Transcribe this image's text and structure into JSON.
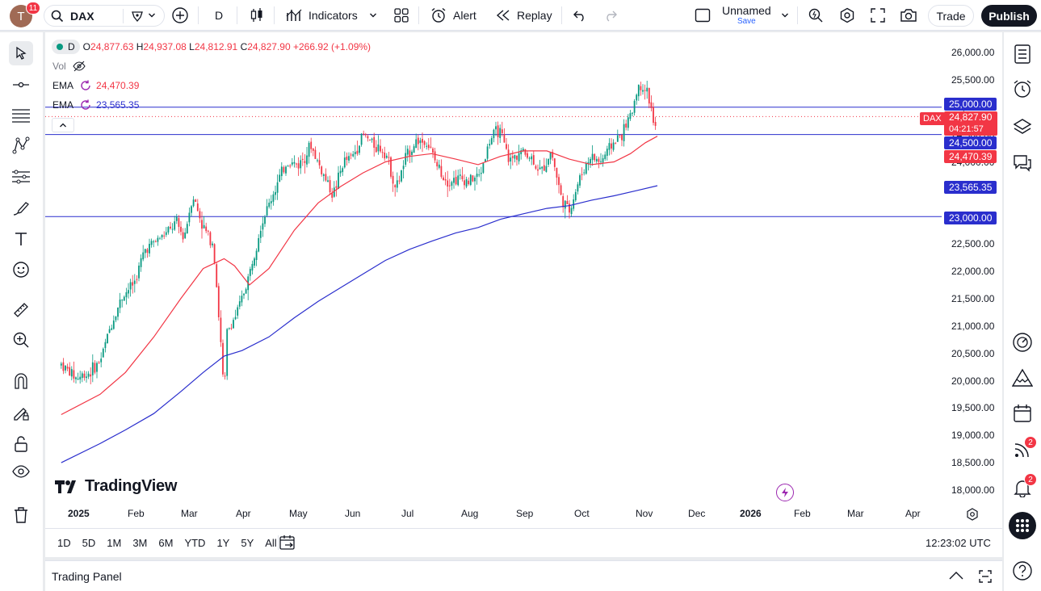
{
  "user": {
    "avatar_letter": "T",
    "notifications": "11"
  },
  "symbol": {
    "ticker": "DAX"
  },
  "toolbar": {
    "interval": "D",
    "indicators_label": "Indicators",
    "alert_label": "Alert",
    "replay_label": "Replay",
    "layout_name": "Unnamed",
    "layout_save": "Save",
    "trade_label": "Trade",
    "publish_label": "Publish"
  },
  "legend": {
    "interval": "D",
    "open_label": "O",
    "open": "24,877.63",
    "high_label": "H",
    "high": "24,937.08",
    "low_label": "L",
    "low": "24,812.91",
    "close_label": "C",
    "close": "24,827.90",
    "change": "+266.92 (+1.09%)",
    "vol_label": "Vol",
    "ema1_label": "EMA",
    "ema1_value": "24,470.39",
    "ema2_label": "EMA",
    "ema2_value": "23,565.35"
  },
  "colors": {
    "up": "#089981",
    "down": "#f23645",
    "ema_fast": "#f23645",
    "ema_slow": "#2a2ecd",
    "hline": "#2a2ecd",
    "accent": "#2962ff"
  },
  "price_axis": {
    "ticks": [
      "26,000.00",
      "25,500.00",
      "25,000.00",
      "24,500.00",
      "24,000.00",
      "23,500.00",
      "23,000.00",
      "22,500.00",
      "22,000.00",
      "21,500.00",
      "21,000.00",
      "20,500.00",
      "20,000.00",
      "19,500.00",
      "19,000.00",
      "18,500.00",
      "18,000.00"
    ],
    "labels": {
      "hline_top": "25,000.00",
      "symbol_tag": "DAX",
      "last_price": "24,827.90",
      "countdown": "04:21:57",
      "hline_mid": "24,500.00",
      "ema_fast": "24,470.39",
      "ema_slow": "23,565.35",
      "hline_low": "23,000.00"
    }
  },
  "time_axis": {
    "ticks": [
      "2025",
      "Feb",
      "Mar",
      "Apr",
      "May",
      "Jun",
      "Jul",
      "Aug",
      "Sep",
      "Oct",
      "Nov",
      "Dec",
      "2026",
      "Feb",
      "Mar",
      "Apr"
    ]
  },
  "ranges": [
    "1D",
    "5D",
    "1M",
    "3M",
    "6M",
    "YTD",
    "1Y",
    "5Y",
    "All"
  ],
  "clock": "12:23:02 UTC",
  "watermark": "TradingView",
  "bottom_panel": {
    "label": "Trading Panel"
  },
  "right_badges": {
    "ideas": "2",
    "alerts": "2"
  },
  "chart_data": {
    "type": "candlestick",
    "symbol": "DAX",
    "interval": "D",
    "x_range": [
      "2025-01-01",
      "2026-04-15"
    ],
    "ylim": [
      17800,
      26300
    ],
    "horizontal_lines": [
      25000,
      24500,
      23000
    ],
    "ema_series": [
      {
        "label": "EMA",
        "last": 24470.39,
        "points": [
          [
            "2024-12-20",
            19380
          ],
          [
            "2025-01-15",
            19750
          ],
          [
            "2025-02-01",
            20150
          ],
          [
            "2025-02-20",
            20800
          ],
          [
            "2025-03-10",
            21500
          ],
          [
            "2025-03-25",
            22050
          ],
          [
            "2025-04-08",
            22230
          ],
          [
            "2025-04-15",
            22100
          ],
          [
            "2025-04-25",
            21750
          ],
          [
            "2025-05-08",
            22050
          ],
          [
            "2025-05-25",
            22750
          ],
          [
            "2025-06-10",
            23250
          ],
          [
            "2025-06-25",
            23550
          ],
          [
            "2025-07-10",
            23800
          ],
          [
            "2025-07-25",
            24000
          ],
          [
            "2025-08-10",
            24100
          ],
          [
            "2025-08-25",
            24150
          ],
          [
            "2025-09-10",
            24050
          ],
          [
            "2025-09-25",
            23950
          ],
          [
            "2025-10-10",
            24100
          ],
          [
            "2025-10-25",
            24200
          ],
          [
            "2025-11-10",
            24200
          ],
          [
            "2025-11-25",
            24050
          ],
          [
            "2025-12-10",
            23950
          ],
          [
            "2025-12-25",
            24000
          ],
          [
            "2026-01-05",
            24150
          ],
          [
            "2026-01-15",
            24350
          ],
          [
            "2026-01-23",
            24470
          ]
        ]
      },
      {
        "label": "EMA",
        "last": 23565.35,
        "points": [
          [
            "2024-12-20",
            18500
          ],
          [
            "2025-01-15",
            18850
          ],
          [
            "2025-02-01",
            19100
          ],
          [
            "2025-02-20",
            19400
          ],
          [
            "2025-03-10",
            19800
          ],
          [
            "2025-03-25",
            20150
          ],
          [
            "2025-04-08",
            20450
          ],
          [
            "2025-04-20",
            20550
          ],
          [
            "2025-05-08",
            20800
          ],
          [
            "2025-05-25",
            21150
          ],
          [
            "2025-06-10",
            21450
          ],
          [
            "2025-06-25",
            21700
          ],
          [
            "2025-07-10",
            21950
          ],
          [
            "2025-07-25",
            22200
          ],
          [
            "2025-08-10",
            22400
          ],
          [
            "2025-08-25",
            22550
          ],
          [
            "2025-09-10",
            22700
          ],
          [
            "2025-09-25",
            22800
          ],
          [
            "2025-10-10",
            22950
          ],
          [
            "2025-10-25",
            23050
          ],
          [
            "2025-11-10",
            23150
          ],
          [
            "2025-11-25",
            23200
          ],
          [
            "2025-12-10",
            23300
          ],
          [
            "2025-12-25",
            23380
          ],
          [
            "2026-01-10",
            23480
          ],
          [
            "2026-01-23",
            23565
          ]
        ]
      }
    ],
    "close_path": [
      [
        "2024-12-20",
        20300
      ],
      [
        "2024-12-30",
        20050
      ],
      [
        "2025-01-08",
        20150
      ],
      [
        "2025-01-15",
        20350
      ],
      [
        "2025-01-22",
        21000
      ],
      [
        "2025-01-30",
        21550
      ],
      [
        "2025-02-07",
        21800
      ],
      [
        "2025-02-14",
        22400
      ],
      [
        "2025-02-21",
        22550
      ],
      [
        "2025-03-03",
        22750
      ],
      [
        "2025-03-07",
        22900
      ],
      [
        "2025-03-12",
        22600
      ],
      [
        "2025-03-18",
        23400
      ],
      [
        "2025-03-25",
        22800
      ],
      [
        "2025-04-01",
        22500
      ],
      [
        "2025-04-07",
        20200
      ],
      [
        "2025-04-08",
        19600
      ],
      [
        "2025-04-10",
        20900
      ],
      [
        "2025-04-17",
        21250
      ],
      [
        "2025-04-25",
        21950
      ],
      [
        "2025-05-02",
        22800
      ],
      [
        "2025-05-12",
        23500
      ],
      [
        "2025-05-20",
        24000
      ],
      [
        "2025-05-28",
        23950
      ],
      [
        "2025-06-05",
        24300
      ],
      [
        "2025-06-12",
        23850
      ],
      [
        "2025-06-20",
        23400
      ],
      [
        "2025-06-27",
        24000
      ],
      [
        "2025-07-03",
        24100
      ],
      [
        "2025-07-10",
        24500
      ],
      [
        "2025-07-18",
        24300
      ],
      [
        "2025-07-25",
        24200
      ],
      [
        "2025-08-01",
        23500
      ],
      [
        "2025-08-08",
        24100
      ],
      [
        "2025-08-15",
        24400
      ],
      [
        "2025-08-22",
        24350
      ],
      [
        "2025-08-29",
        23900
      ],
      [
        "2025-09-05",
        23650
      ],
      [
        "2025-09-12",
        23700
      ],
      [
        "2025-09-19",
        23650
      ],
      [
        "2025-09-26",
        23750
      ],
      [
        "2025-10-03",
        24400
      ],
      [
        "2025-10-09",
        24600
      ],
      [
        "2025-10-16",
        24000
      ],
      [
        "2025-10-23",
        24200
      ],
      [
        "2025-10-30",
        24100
      ],
      [
        "2025-11-06",
        23800
      ],
      [
        "2025-11-13",
        24200
      ],
      [
        "2025-11-20",
        23300
      ],
      [
        "2025-11-25",
        23100
      ],
      [
        "2025-12-02",
        23700
      ],
      [
        "2025-12-09",
        24100
      ],
      [
        "2025-12-16",
        24000
      ],
      [
        "2025-12-23",
        24300
      ],
      [
        "2025-12-30",
        24500
      ],
      [
        "2026-01-06",
        24900
      ],
      [
        "2026-01-09",
        25300
      ],
      [
        "2026-01-13",
        25400
      ],
      [
        "2026-01-16",
        25300
      ],
      [
        "2026-01-19",
        24950
      ],
      [
        "2026-01-21",
        24550
      ],
      [
        "2026-01-23",
        24828
      ]
    ]
  }
}
